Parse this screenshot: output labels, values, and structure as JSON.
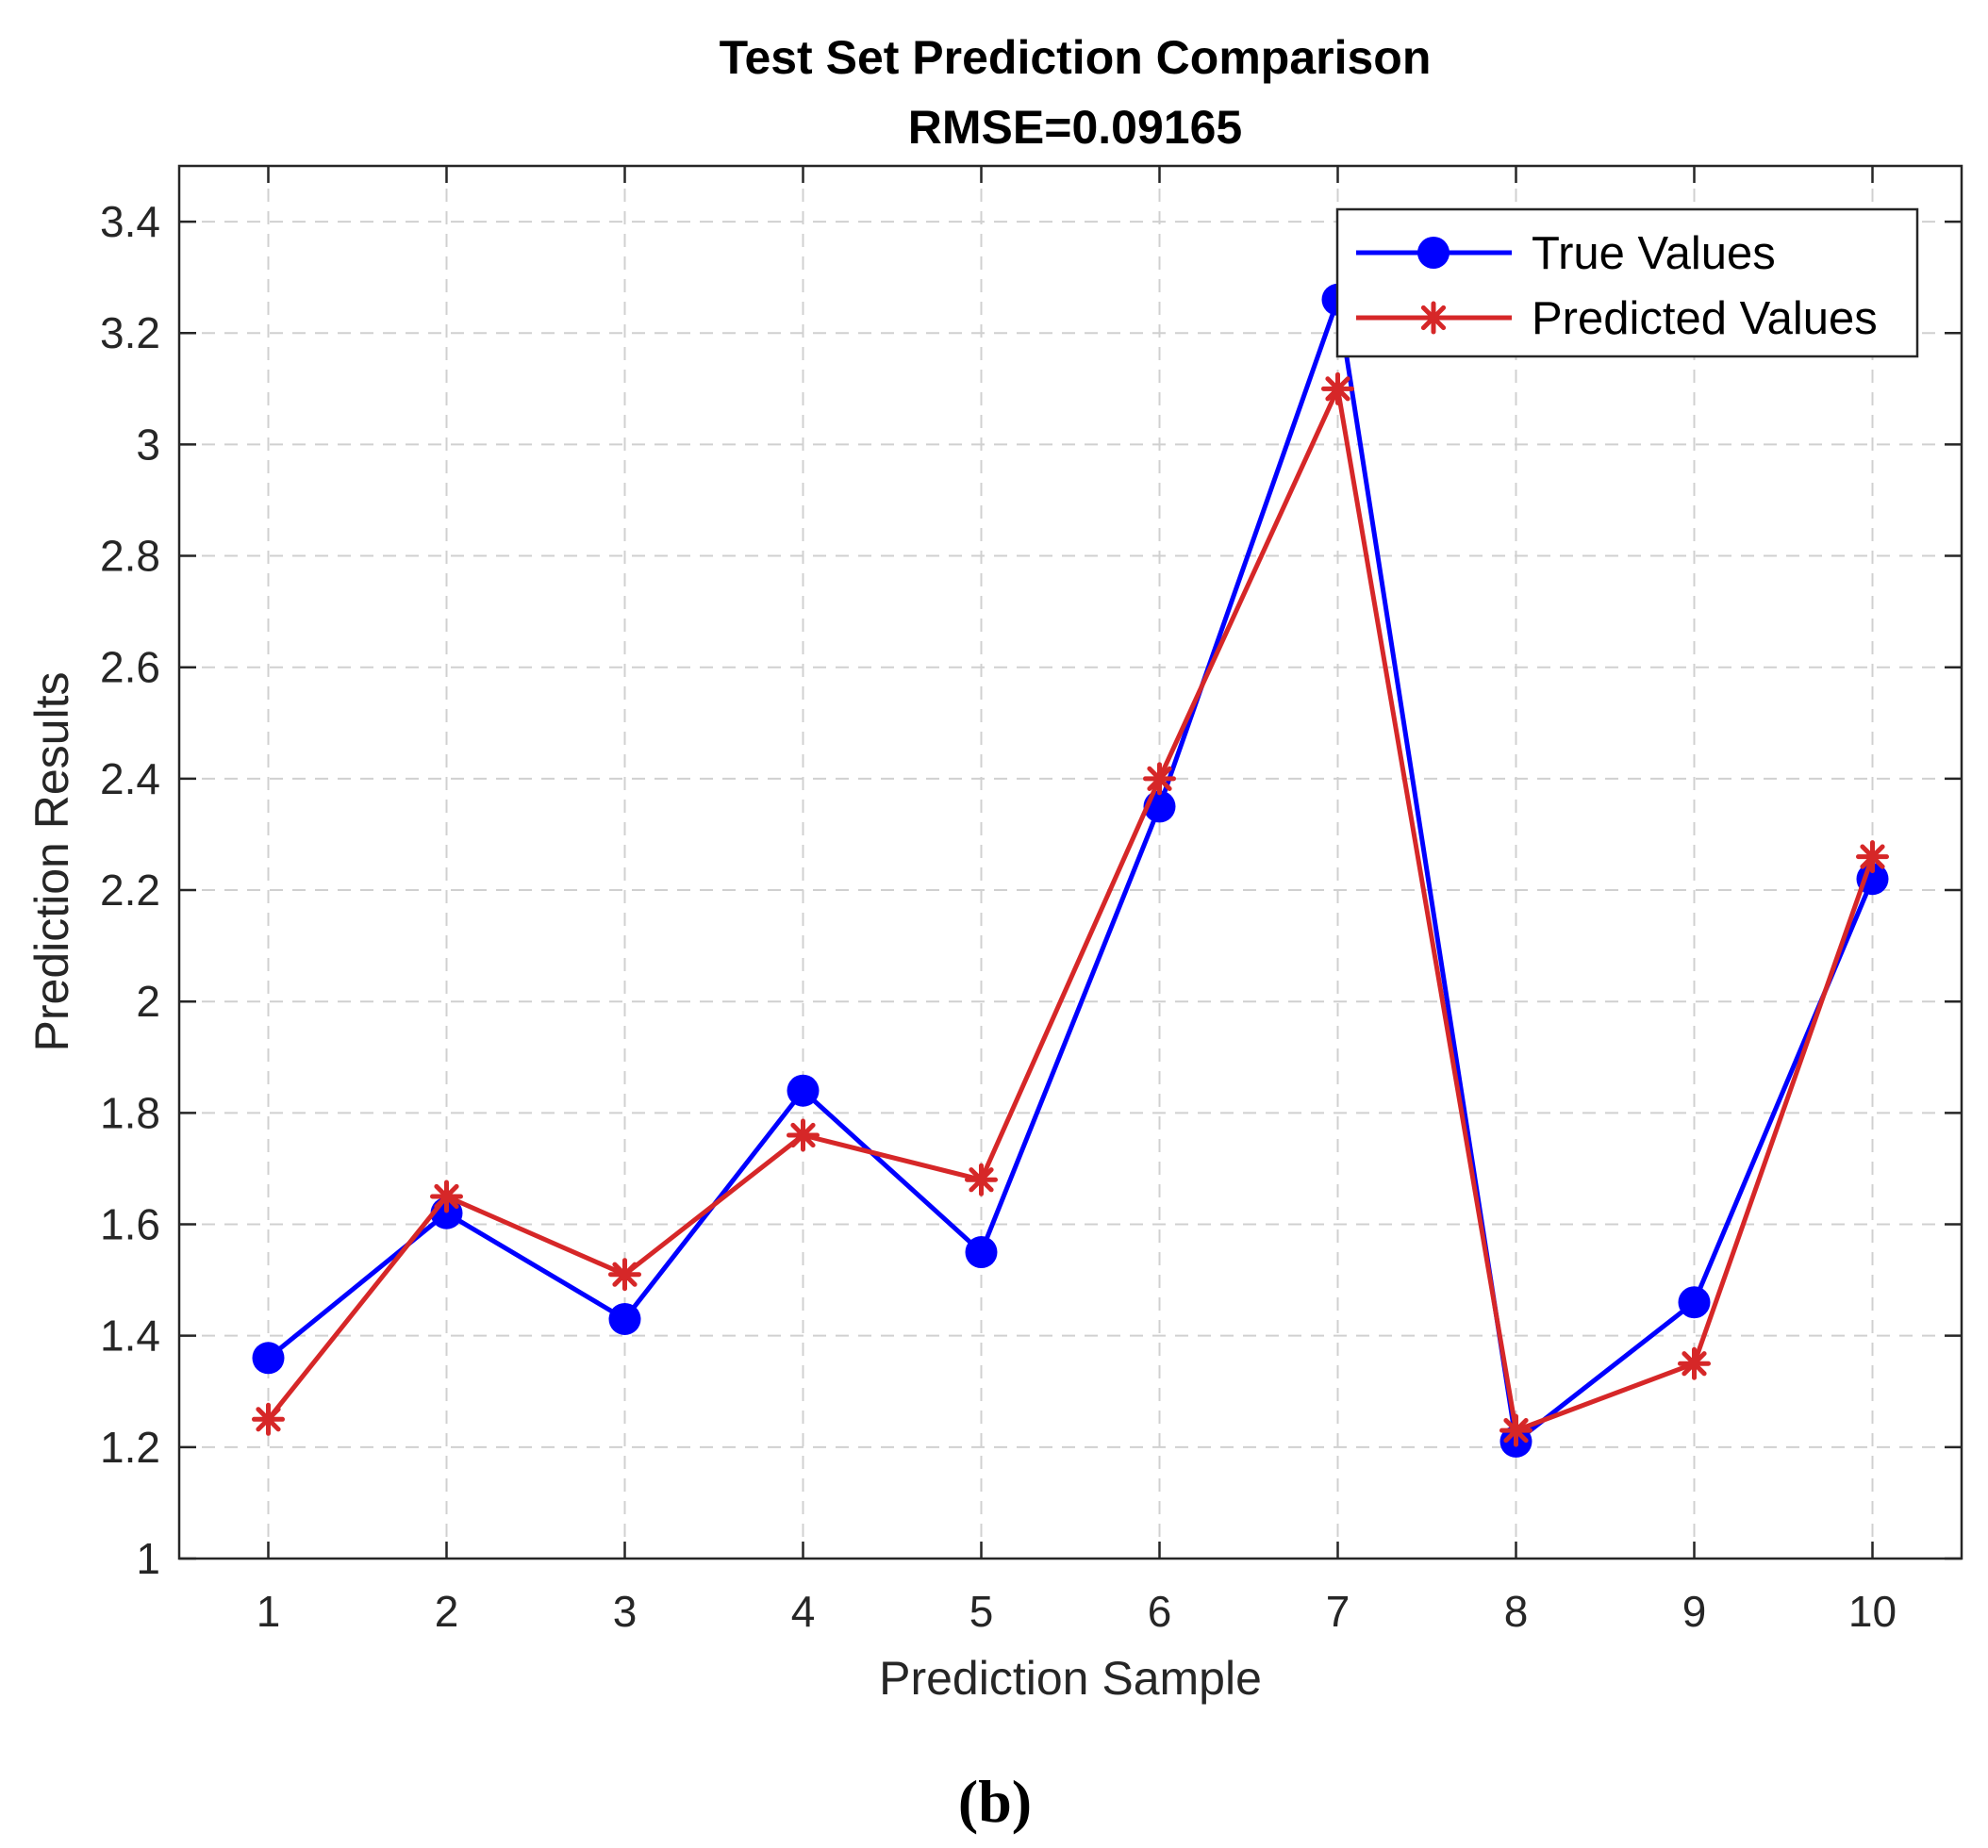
{
  "chart_data": {
    "type": "line",
    "title": "Test Set Prediction Comparison",
    "subtitle": "RMSE=0.09165",
    "xlabel": "Prediction Sample",
    "ylabel": "Prediction Results",
    "x": [
      1,
      2,
      3,
      4,
      5,
      6,
      7,
      8,
      9,
      10
    ],
    "xticks": [
      "1",
      "2",
      "3",
      "4",
      "5",
      "6",
      "7",
      "8",
      "9",
      "10"
    ],
    "xlim": [
      0.5,
      10.5
    ],
    "ylim": [
      1,
      3.5
    ],
    "yticks": [
      "1",
      "1.2",
      "1.4",
      "1.6",
      "1.8",
      "2",
      "2.2",
      "2.4",
      "2.6",
      "2.8",
      "3",
      "3.2",
      "3.4"
    ],
    "grid": true,
    "legend_position": "top-right",
    "series": [
      {
        "name": "True Values",
        "color": "#0000ff",
        "marker": "circle",
        "values": [
          1.36,
          1.62,
          1.43,
          1.84,
          1.55,
          2.35,
          3.26,
          1.21,
          1.46,
          2.22
        ]
      },
      {
        "name": "Predicted Values",
        "color": "#d62728",
        "marker": "asterisk",
        "values": [
          1.25,
          1.65,
          1.51,
          1.76,
          1.68,
          2.4,
          3.1,
          1.23,
          1.35,
          2.26
        ]
      }
    ]
  },
  "panel_label": "(b)"
}
